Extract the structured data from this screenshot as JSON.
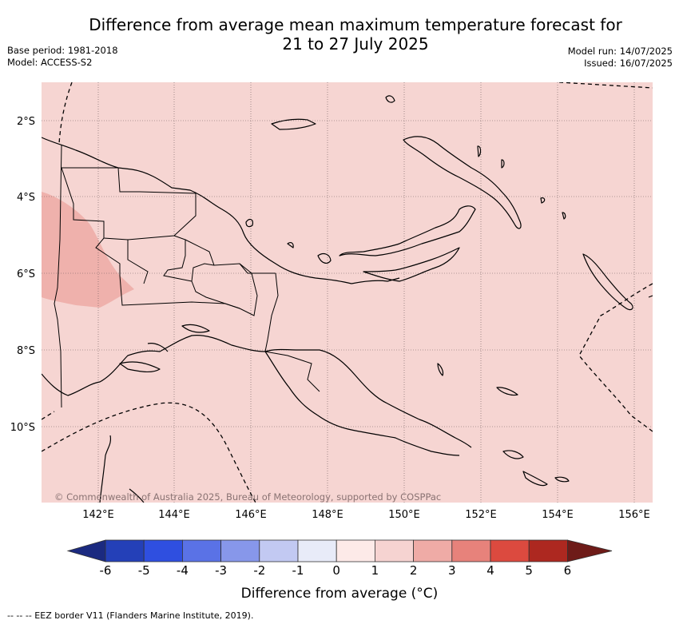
{
  "title_line1": "Difference from average mean maximum temperature forecast for",
  "title_line2": "21 to 27 July 2025",
  "base_period": "Base period: 1981-2018",
  "model": "Model: ACCESS-S2",
  "model_run": "Model run: 14/07/2025",
  "issued": "Issued: 16/07/2025",
  "copyright": "© Commonwealth of Australia 2025, Bureau of Meteorology, supported by COSPPac",
  "lat_labels": [
    "2°S",
    "4°S",
    "6°S",
    "8°S",
    "10°S"
  ],
  "lon_labels": [
    "142°E",
    "144°E",
    "146°E",
    "148°E",
    "150°E",
    "152°E",
    "154°E",
    "156°E"
  ],
  "colorbar": {
    "ticks": [
      "-6",
      "-5",
      "-4",
      "-3",
      "-2",
      "-1",
      "0",
      "1",
      "2",
      "3",
      "4",
      "5",
      "6"
    ],
    "colors": [
      "#1b2a80",
      "#2440b8",
      "#2f4fe0",
      "#5a72e6",
      "#8797ea",
      "#c2c9f2",
      "#e8ebf8",
      "#fdeae8",
      "#f6d3d1",
      "#efaba6",
      "#e7827b",
      "#dc4a3f",
      "#ad2820",
      "#6e1b18"
    ],
    "title": "Difference from average (°C)"
  },
  "map_colors": {
    "base": "#f6d5d2",
    "warmer": "#edaaa6"
  },
  "footnote": "--  --  -- EEZ border V11 (Flanders Marine Institute, 2019)."
}
